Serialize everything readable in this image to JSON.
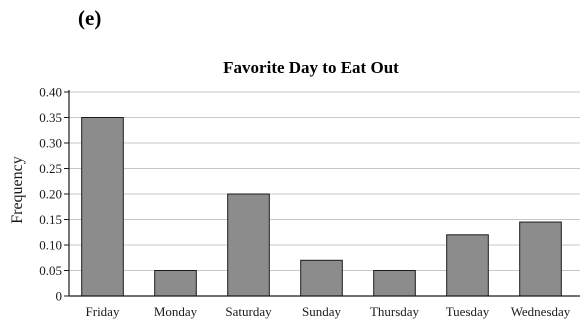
{
  "panel_label": "(e)",
  "chart_data": {
    "type": "bar",
    "title": "Favorite  Day to Eat Out",
    "xlabel": "",
    "ylabel": "Frequency",
    "categories": [
      "Friday",
      "Monday",
      "Saturday",
      "Sunday",
      "Thursday",
      "Tuesday",
      "Wednesday"
    ],
    "values": [
      0.35,
      0.05,
      0.2,
      0.07,
      0.05,
      0.12,
      0.145
    ],
    "ylim": [
      0,
      0.4
    ],
    "yticks": [
      0,
      0.05,
      0.1,
      0.15,
      0.2,
      0.25,
      0.3,
      0.35,
      0.4
    ],
    "ytick_labels": [
      "0",
      "0.05",
      "0.10",
      "0.15",
      "0.20",
      "0.25",
      "0.30",
      "0.35",
      "0.40"
    ],
    "grid": true,
    "bar_color": "#8c8c8c",
    "grid_color": "#c8c8c8"
  }
}
